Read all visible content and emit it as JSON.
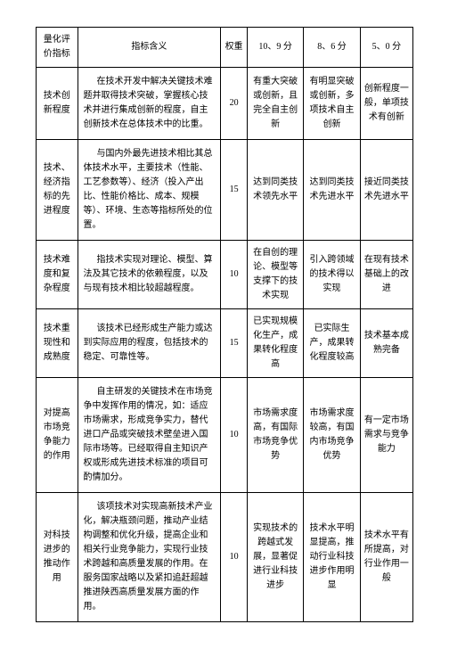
{
  "table": {
    "headers": {
      "indicator": "量化评价指标",
      "meaning": "指标含义",
      "weight": "权重",
      "score1": "10、9 分",
      "score2": "8、6 分",
      "score3": "5、0 分"
    },
    "rows": [
      {
        "indicator": "技术创新程度",
        "meaning": "在技术开发中解决关键技术难题并取得技术突破，掌握核心技术并进行集成创新的程度，自主创新技术在总体技术中的比重。",
        "weight": "20",
        "score1": "有重大突破或创新，且完全自主创新",
        "score2": "有明显突破或创新，多项技术自主创新",
        "score3": "创新程度一般，单项技术有创新"
      },
      {
        "indicator": "技术、经济指标的先进程度",
        "meaning": "与国内外最先进技术相比其总体技术水平，主要技术（性能、工艺参数等）、经济（投入产出比、性能价格比、成本、规模等）、环境、生态等指标所处的位置。",
        "weight": "15",
        "score1": "达到同类技术领先水平",
        "score2": "达到同类技术先进水平",
        "score3": "接近同类技术先进水平"
      },
      {
        "indicator": "技术难度和复杂程度",
        "meaning": "指技术实现对理论、模型、算法及其它技术的依赖程度，以及与现有技术相比较超越程度。",
        "weight": "10",
        "score1": "在自创的理论、模型等支撑下的技术实现",
        "score2": "引入跨领域的技术得以实现",
        "score3": "在现有技术基础上的改进"
      },
      {
        "indicator": "技术重现性和成熟度",
        "meaning": "该技术已经形成生产能力或达到实际应用的程度，包括技术的稳定、可靠性等。",
        "weight": "15",
        "score1": "已实现规模化生产，成果转化程度高",
        "score2": "已实际生产，成果转化程度较高",
        "score3": "技术基本成熟完备"
      },
      {
        "indicator": "对提高市场竞争能力的作用",
        "meaning": "自主研发的关键技术在市场竞争中发挥作用的情况，如：适应市场需求，形成竞争实力，替代进口产品或突破技术壁垒进入国际市场等。已经取得自主知识产权或形成先进技术标准的项目可酌情加分。",
        "weight": "10",
        "score1": "市场需求度高，有国际市场竞争优势",
        "score2": "市场需求度较高，有国内市场竞争优势",
        "score3": "有一定市场需求与竞争能力"
      },
      {
        "indicator": "对科技进步的推动作用",
        "meaning": "该项技术对实现高新技术产业化，解决瓶颈问题，推动产业结构调整和优化升级，提高企业和相关行业竞争能力，实现行业技术跨越和高质量发展的作用。在服务国家战略以及紧扣追赶超越推进陕西高质量发展方面的作用。",
        "weight": "10",
        "score1": "实现技术的跨越式发展，显著促进行业科技进步",
        "score2": "技术水平明显提高，推动行业科技进步作用明显",
        "score3": "技术水平有所提高，对行业作用一般"
      }
    ]
  }
}
